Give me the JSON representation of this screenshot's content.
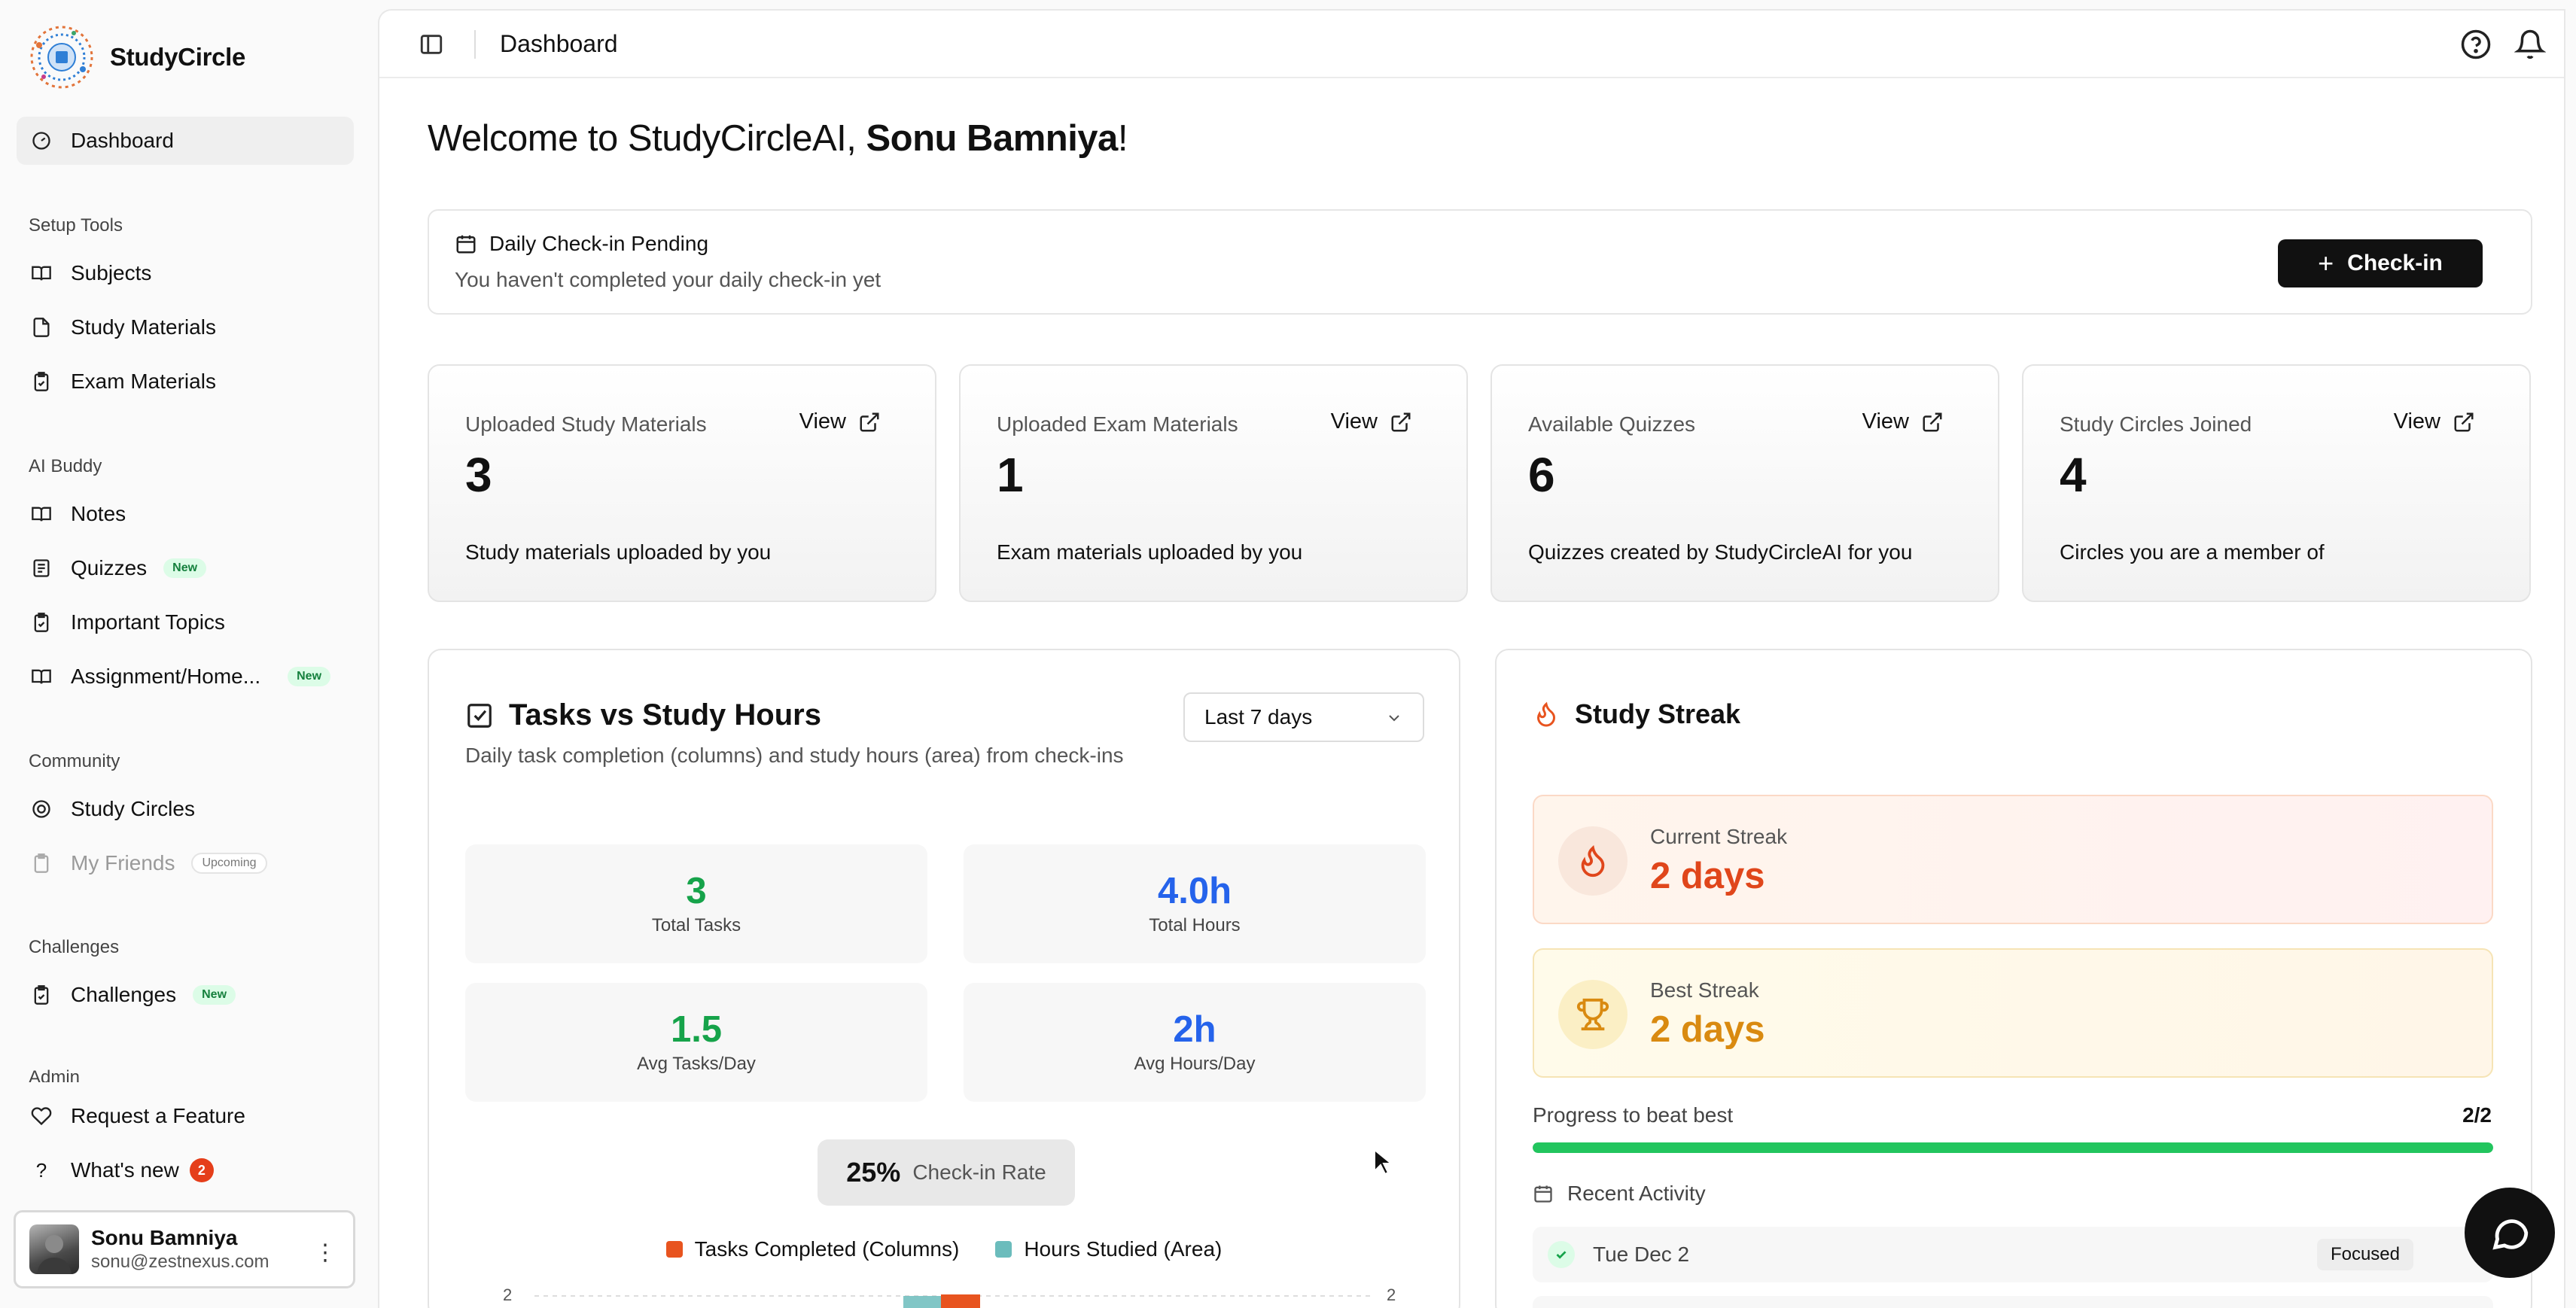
{
  "app": {
    "name": "StudyCircle"
  },
  "sidebar": {
    "dashboard": "Dashboard",
    "setup_label": "Setup Tools",
    "setup_items": [
      "Subjects",
      "Study Materials",
      "Exam Materials"
    ],
    "ai_label": "AI Buddy",
    "ai_items": [
      "Notes",
      "Quizzes",
      "Important Topics",
      "Assignment/Home..."
    ],
    "new_badge": "New",
    "community_label": "Community",
    "community_items": [
      "Study Circles",
      "My Friends"
    ],
    "upcoming_badge": "Upcoming",
    "challenges_label": "Challenges",
    "challenges_item": "Challenges",
    "admin_label": "Admin",
    "request_feature": "Request a Feature",
    "whats_new": "What's new",
    "whats_new_count": "2",
    "user": {
      "name": "Sonu Bamniya",
      "email": "sonu@zestnexus.com"
    }
  },
  "topbar": {
    "breadcrumb": "Dashboard"
  },
  "welcome": {
    "prefix": "Welcome to StudyCircleAI, ",
    "name": "Sonu Bamniya",
    "suffix": "!"
  },
  "checkin": {
    "title": "Daily Check-in Pending",
    "subtitle": "You haven't completed your daily check-in yet",
    "button": "Check-in"
  },
  "stats": [
    {
      "label": "Uploaded Study Materials",
      "value": "3",
      "desc": "Study materials uploaded by you",
      "view": "View"
    },
    {
      "label": "Uploaded Exam Materials",
      "value": "1",
      "desc": "Exam materials uploaded by you",
      "view": "View"
    },
    {
      "label": "Available Quizzes",
      "value": "6",
      "desc": "Quizzes created by StudyCircleAI for you",
      "view": "View"
    },
    {
      "label": "Study Circles Joined",
      "value": "4",
      "desc": "Circles you are a member of",
      "view": "View"
    }
  ],
  "tasks_panel": {
    "title": "Tasks vs Study Hours",
    "subtitle": "Daily task completion (columns) and study hours (area) from check-ins",
    "range": "Last 7 days",
    "total_tasks": {
      "value": "3",
      "label": "Total Tasks"
    },
    "total_hours": {
      "value": "4.0h",
      "label": "Total Hours"
    },
    "avg_tasks": {
      "value": "1.5",
      "label": "Avg Tasks/Day"
    },
    "avg_hours": {
      "value": "2h",
      "label": "Avg Hours/Day"
    },
    "checkin_rate": {
      "value": "25%",
      "label": "Check-in Rate"
    },
    "legend": {
      "tasks": "Tasks Completed (Columns)",
      "hours": "Hours Studied (Area)"
    },
    "y_top_left": "2",
    "y_top_right": "2",
    "colors": {
      "tasks": "#e8541f",
      "hours": "#6bbcbc"
    }
  },
  "streak_panel": {
    "title": "Study Streak",
    "current_label": "Current Streak",
    "current_value": "2 days",
    "best_label": "Best Streak",
    "best_value": "2 days",
    "progress_label": "Progress to beat best",
    "progress_value": "2/2",
    "progress_fraction": 1.0,
    "recent_label": "Recent Activity",
    "activity": [
      {
        "date": "Tue Dec 2",
        "tag": "Focused"
      }
    ]
  }
}
